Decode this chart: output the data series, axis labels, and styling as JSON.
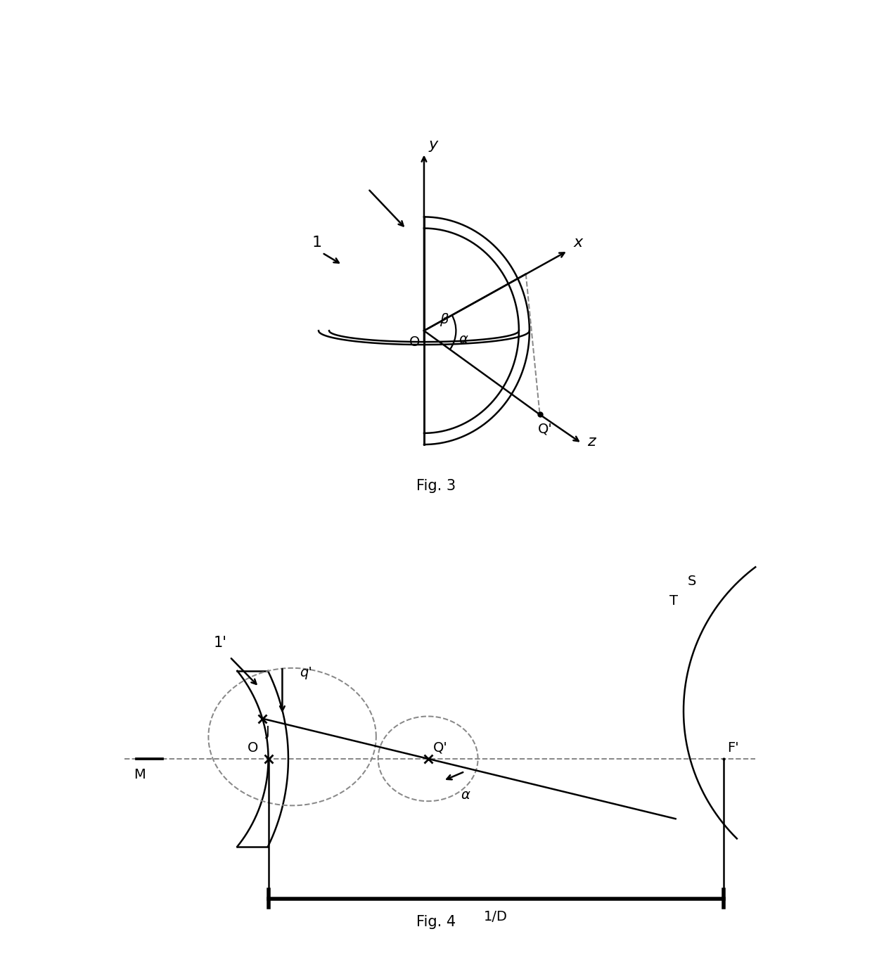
{
  "background_color": "#ffffff",
  "line_color": "#000000",
  "dashed_color": "#888888",
  "line_width": 1.8,
  "font_size": 14,
  "fig3": {
    "title": "Fig. 3",
    "label_1": "1",
    "label_O": "O",
    "label_alpha": "α",
    "label_beta": "β",
    "label_Qprime": "Q'",
    "label_x": "x",
    "label_y": "y",
    "label_z": "z"
  },
  "fig4": {
    "title": "Fig. 4",
    "label_1": "1'",
    "label_O": "O",
    "label_J": "J",
    "label_M": "M",
    "label_Fprime": "F'",
    "label_Qprime": "Q'",
    "label_qprime": "q'",
    "label_alpha": "α",
    "label_T": "T",
    "label_S": "S",
    "label_1D": "1/D"
  }
}
